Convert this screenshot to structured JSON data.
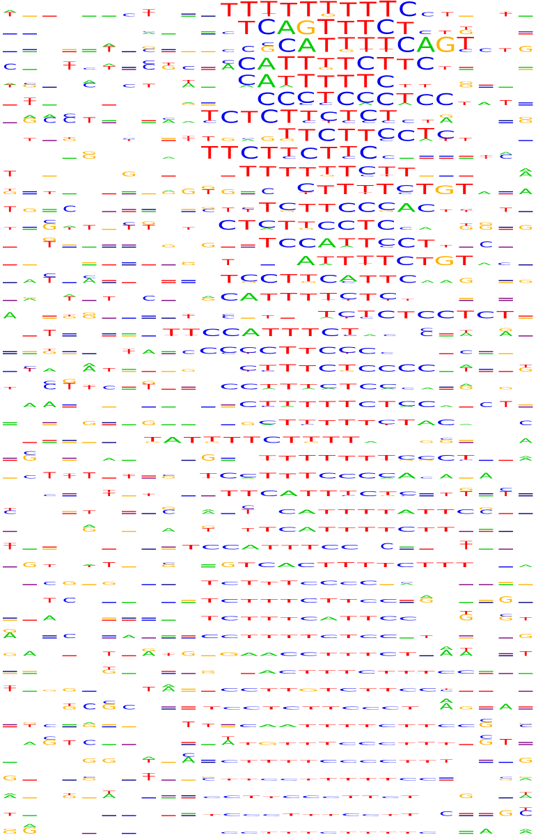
{
  "colors": {
    "T": "#ff0000",
    "C": "#0000ee",
    "A": "#00cc00",
    "G": "#ffb300",
    "gap": "#800080",
    "bar_alt": "#000080"
  },
  "rows": [
    {
      "seq": "TTTTTTTTTC",
      "offset": 315,
      "strength": 1.0,
      "extra": [
        "C",
        "T"
      ],
      "noise": "T.A.A"
    },
    {
      "seq": "TCAGTTTCT",
      "offset": 340,
      "strength": 0.95,
      "extra": [
        "C",
        "T"
      ],
      "noise": "C.A.A"
    },
    {
      "seq": "CATTTTCAGT",
      "offset": 398,
      "strength": 0.95,
      "extra": [
        "C",
        "T"
      ],
      "noise": "C.A.A"
    },
    {
      "seq": "CATTTTCTTC",
      "offset": 340,
      "strength": 0.85,
      "extra": [
        "T"
      ],
      "noise": "T.C.A"
    },
    {
      "seq": "CATTTTTC",
      "offset": 340,
      "strength": 0.85,
      "extra": [
        "T",
        "T"
      ],
      "noise": "A.T.T"
    },
    {
      "seq": "CCCTCCCTCC",
      "offset": 368,
      "strength": 0.85,
      "extra": [
        "T",
        "A"
      ],
      "noise": "C.T.C"
    },
    {
      "seq": "TCTCTTCTCT",
      "offset": 287,
      "strength": 0.85,
      "extra": [
        "C",
        "T"
      ],
      "noise": "T.C.T"
    },
    {
      "seq": "TTCTTCCTC",
      "offset": 398,
      "strength": 0.8,
      "extra": [
        "T"
      ],
      "noise": "T.G.C"
    },
    {
      "seq": "TTCTTCTTC",
      "offset": 287,
      "strength": 0.8,
      "extra": [
        "C"
      ],
      "noise": "T.T.T"
    },
    {
      "seq": "TTTTTTCTT",
      "offset": 342,
      "strength": 0.65,
      "extra": [],
      "noise": "C.T.T"
    },
    {
      "seq": "CTTTTCTGT",
      "offset": 425,
      "strength": 0.65,
      "extra": [
        "A"
      ],
      "noise": "A.T.A"
    },
    {
      "seq": "TCTTCCCAC",
      "offset": 370,
      "strength": 0.6,
      "extra": [
        "T"
      ],
      "noise": "C.A.C"
    },
    {
      "seq": "CTCTTCCTC",
      "offset": 312,
      "strength": 0.6,
      "extra": [
        "C",
        "A"
      ],
      "noise": "A.T.C"
    },
    {
      "seq": "TCCATTCCT",
      "offset": 370,
      "strength": 0.6,
      "extra": [
        "T"
      ],
      "noise": "A.C.T"
    },
    {
      "seq": "ATTTTCTGT",
      "offset": 425,
      "strength": 0.6,
      "extra": [
        "A",
        "C"
      ],
      "noise": "A.T.C"
    },
    {
      "seq": "TCCTTCATTC",
      "offset": 315,
      "strength": 0.55,
      "extra": [
        "A"
      ],
      "noise": "T.C.A"
    },
    {
      "seq": "CATTTTCTC",
      "offset": 315,
      "strength": 0.5,
      "extra": [
        "T"
      ],
      "noise": "A.T.C"
    },
    {
      "seq": "TCTCTCCTCT",
      "offset": 455,
      "strength": 0.5,
      "extra": [],
      "noise": "T.T.A"
    },
    {
      "seq": "TTCCATTTCT",
      "offset": 232,
      "strength": 0.5,
      "extra": [
        "A",
        "C"
      ],
      "noise": "C.A.C"
    },
    {
      "seq": "CCCCTTCCC",
      "offset": 285,
      "strength": 0.45,
      "extra": [
        "C"
      ],
      "noise": "C.T.C"
    },
    {
      "seq": "CTTTCTCCCC",
      "offset": 342,
      "strength": 0.45,
      "extra": [],
      "noise": "T.T.C"
    },
    {
      "seq": "CCTTTCTCC",
      "offset": 315,
      "strength": 0.4,
      "extra": [
        "C",
        "A"
      ],
      "noise": "A.C.A"
    },
    {
      "seq": "CTTTTTCTCC",
      "offset": 342,
      "strength": 0.4,
      "extra": [
        "A"
      ],
      "noise": "T.A.G"
    },
    {
      "seq": "CTTTTTCTAC",
      "offset": 370,
      "strength": 0.35,
      "extra": [
        "A"
      ],
      "noise": "T.C.T"
    },
    {
      "seq": "TATTTTCTTTT",
      "offset": 205,
      "strength": 0.4,
      "extra": [
        "A"
      ],
      "noise": "T.C.T"
    },
    {
      "seq": "TTTTTTTCCCT",
      "offset": 370,
      "strength": 0.35,
      "extra": [],
      "noise": "T.C.T"
    },
    {
      "seq": "TCCTTTCCCCA",
      "offset": 285,
      "strength": 0.35,
      "extra": [
        "C"
      ],
      "noise": "C.T.A"
    },
    {
      "seq": "TTCATTTCTC",
      "offset": 315,
      "strength": 0.35,
      "extra": [],
      "noise": "A.C.T"
    },
    {
      "seq": "CATTTTATTC",
      "offset": 398,
      "strength": 0.3,
      "extra": [],
      "noise": "T.C.A"
    },
    {
      "seq": "TCATTTTCTT",
      "offset": 370,
      "strength": 0.3,
      "extra": [],
      "noise": "T.A.C"
    },
    {
      "seq": "TCCATTTCC",
      "offset": 260,
      "strength": 0.3,
      "extra": [],
      "noise": "T.A.T"
    },
    {
      "seq": "TCACTTTTCTTT",
      "offset": 340,
      "strength": 0.3,
      "extra": [],
      "noise": "A.T.A"
    },
    {
      "seq": "TCTTTCCCC",
      "offset": 287,
      "strength": 0.25,
      "extra": [],
      "noise": "C.T.C"
    },
    {
      "seq": "TCTTTCTTCC",
      "offset": 287,
      "strength": 0.25,
      "extra": [],
      "noise": "T.C.T"
    },
    {
      "seq": "TCTTTCATTCC",
      "offset": 287,
      "strength": 0.25,
      "extra": [],
      "noise": "T.C.A"
    },
    {
      "seq": "CCTTTTCTCC",
      "offset": 287,
      "strength": 0.22,
      "extra": [],
      "noise": "C.T.A"
    },
    {
      "seq": "GAACCTTTCT",
      "offset": 315,
      "strength": 0.22,
      "extra": [],
      "noise": "A.C.T"
    },
    {
      "seq": "ACTTTCTTTCC",
      "offset": 370,
      "strength": 0.2,
      "extra": [],
      "noise": "C.T.A"
    },
    {
      "seq": "CCTTGTCTTCC",
      "offset": 315,
      "strength": 0.2,
      "extra": [],
      "noise": "C.T.C"
    },
    {
      "seq": "TCCTCTTCCCT",
      "offset": 290,
      "strength": 0.18,
      "extra": [],
      "noise": "T.C.T"
    },
    {
      "seq": "CAATTTTCTTCC",
      "offset": 342,
      "strength": 0.18,
      "extra": [],
      "noise": "T.C.A"
    },
    {
      "seq": "TGTTTCCCTTT",
      "offset": 342,
      "strength": 0.16,
      "extra": [],
      "noise": "T.T.C"
    },
    {
      "seq": "CTTTTCCCCTT",
      "offset": 315,
      "strength": 0.16,
      "extra": [],
      "noise": "C.T.C"
    },
    {
      "seq": "TTCCTTTTTCC",
      "offset": 315,
      "strength": 0.15,
      "extra": [],
      "noise": "T.A.C"
    },
    {
      "seq": "CCTTCCCTTCT",
      "offset": 290,
      "strength": 0.14,
      "extra": [],
      "noise": "T.C.T"
    },
    {
      "seq": "TCCCTTTCCTT",
      "offset": 290,
      "strength": 0.13,
      "extra": [],
      "noise": "C.T.T"
    },
    {
      "seq": "CCTTTCTTTTC",
      "offset": 315,
      "strength": 0.12,
      "extra": [],
      "noise": "C.A.T"
    }
  ]
}
